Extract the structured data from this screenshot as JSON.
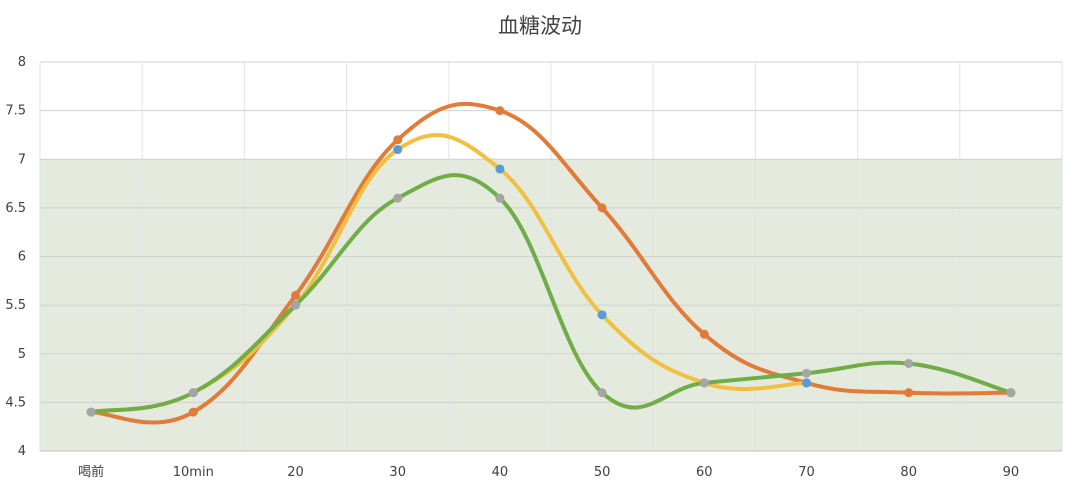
{
  "chart_data": {
    "type": "line",
    "title": "血糖波动",
    "categories": [
      "喝前",
      "10min",
      "20",
      "30",
      "40",
      "50",
      "60",
      "70",
      "80",
      "90"
    ],
    "ylim": [
      4,
      8
    ],
    "yticks": [
      "4",
      "4.5",
      "5",
      "5.5",
      "6",
      "6.5",
      "7",
      "7.5",
      "8"
    ],
    "grid": true,
    "smooth": true,
    "target_band": {
      "from": 4,
      "to": 7,
      "color": "#e5eadf"
    },
    "series": [
      {
        "color": "#e07b39",
        "marker_color": "#e07b39",
        "values": [
          4.4,
          4.4,
          5.6,
          7.2,
          7.5,
          6.5,
          5.2,
          4.7,
          4.6,
          4.6
        ]
      },
      {
        "color": "#f0c040",
        "marker_color": "#5b9bd5",
        "values": [
          4.4,
          4.6,
          5.5,
          7.1,
          6.9,
          5.4,
          4.7,
          4.7,
          null,
          null
        ]
      },
      {
        "color": "#70ad47",
        "marker_color": "#a5a5a5",
        "values": [
          4.4,
          4.6,
          5.5,
          6.6,
          6.6,
          4.6,
          4.7,
          4.8,
          4.9,
          4.6
        ]
      }
    ]
  }
}
